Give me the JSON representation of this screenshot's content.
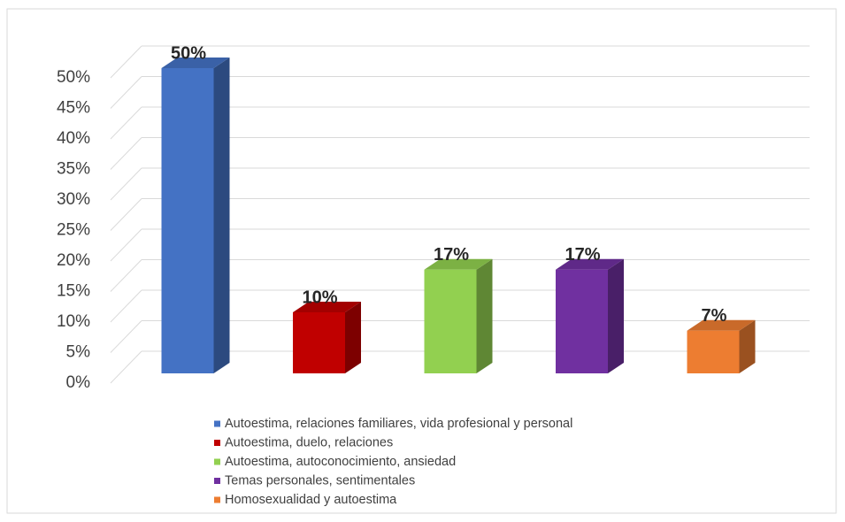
{
  "chart_data": {
    "type": "bar3d",
    "categories": [
      "Autoestima, relaciones familiares, vida profesional y personal",
      "Autoestima, duelo, relaciones",
      "Autoestima, autoconocimiento, ansiedad",
      "Temas personales, sentimentales",
      "Homosexualidad y autoestima"
    ],
    "values": [
      50,
      10,
      17,
      17,
      7
    ],
    "value_labels": [
      "50%",
      "10%",
      "17%",
      "17%",
      "7%"
    ],
    "colors": [
      "#4472c4",
      "#c00000",
      "#92d050",
      "#7030a0",
      "#ed7d31"
    ],
    "ylim": [
      0,
      50
    ],
    "yticks": [
      {
        "value": 0,
        "label": "0%"
      },
      {
        "value": 5,
        "label": "5%"
      },
      {
        "value": 10,
        "label": "10%"
      },
      {
        "value": 15,
        "label": "15%"
      },
      {
        "value": 20,
        "label": "20%"
      },
      {
        "value": 25,
        "label": "25%"
      },
      {
        "value": 30,
        "label": "30%"
      },
      {
        "value": 35,
        "label": "35%"
      },
      {
        "value": 40,
        "label": "40%"
      },
      {
        "value": 45,
        "label": "45%"
      },
      {
        "value": 50,
        "label": "50%"
      }
    ],
    "grid": true,
    "legend": "bottom"
  }
}
